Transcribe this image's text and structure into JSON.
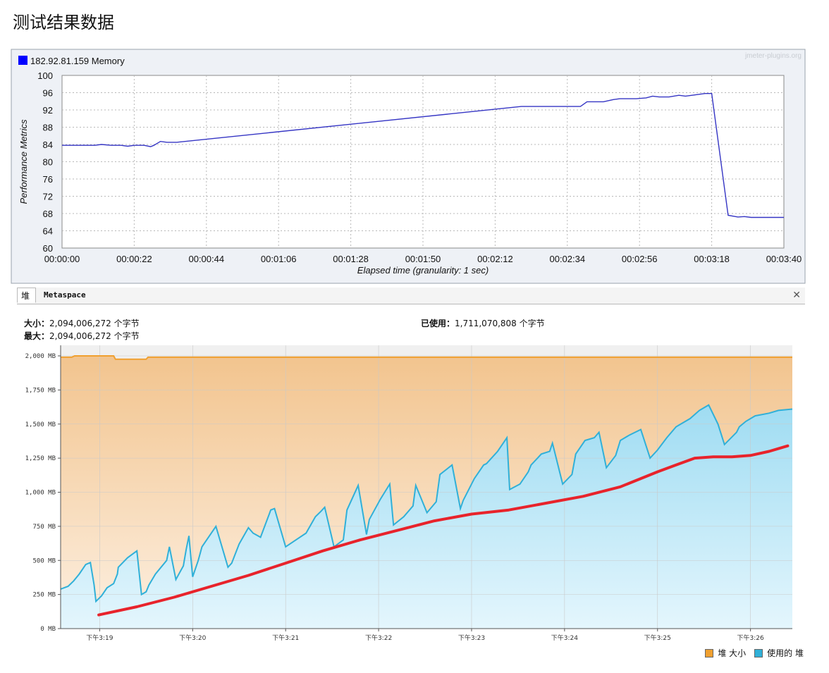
{
  "page": {
    "title": "测试结果数据"
  },
  "chart_data": [
    {
      "type": "line",
      "watermark": "jmeter-plugins.org",
      "ylabel": "Performance Metrics",
      "xlabel": "Elapsed time (granularity: 1 sec)",
      "ylim": [
        60,
        100
      ],
      "yticks": [
        "100",
        "96",
        "92",
        "88",
        "84",
        "80",
        "76",
        "72",
        "68",
        "64",
        "60"
      ],
      "xticks": [
        "00:00:00",
        "00:00:22",
        "00:00:44",
        "00:01:06",
        "00:01:28",
        "00:01:50",
        "00:02:12",
        "00:02:34",
        "00:02:56",
        "00:03:18",
        "00:03:40"
      ],
      "xlim_seconds": [
        0,
        220
      ],
      "grid": true,
      "legend_position": "top-left",
      "series": [
        {
          "name": "182.92.81.159 Memory",
          "color": "#0000ff",
          "line_color": "#3535c4",
          "x": [
            0,
            5,
            10,
            12,
            15,
            18,
            20,
            22,
            25,
            27,
            28,
            30,
            32,
            35,
            140,
            152,
            158,
            160,
            165,
            168,
            170,
            175,
            178,
            180,
            182,
            185,
            188,
            190,
            192,
            196,
            198,
            203,
            206,
            208,
            210,
            215,
            220
          ],
          "y": [
            83.8,
            83.8,
            83.8,
            84.0,
            83.8,
            83.8,
            83.6,
            83.8,
            83.8,
            83.5,
            83.8,
            84.7,
            84.5,
            84.5,
            92.8,
            92.8,
            92.8,
            93.9,
            93.9,
            94.4,
            94.6,
            94.6,
            94.8,
            95.2,
            95.0,
            95.0,
            95.4,
            95.2,
            95.4,
            95.8,
            95.8,
            67.6,
            67.2,
            67.3,
            67.1,
            67.1,
            67.1
          ]
        }
      ]
    },
    {
      "type": "area",
      "tabs": [
        "堆",
        "Metaspace"
      ],
      "close_icon": "close-icon",
      "size_label": "大小：",
      "size_value": "2,094,006,272 个字节",
      "max_label": "最大：",
      "max_value": "2,094,006,272 个字节",
      "used_label": "已使用：",
      "used_value": "1,711,070,808 个字节",
      "yticks": [
        "2,000 MB",
        "1,750 MB",
        "1,500 MB",
        "1,250 MB",
        "1,000 MB",
        "750 MB",
        "500 MB",
        "250 MB",
        "0 MB"
      ],
      "ylim": [
        0,
        2000
      ],
      "xticks": [
        "下午3:19",
        "下午3:20",
        "下午3:21",
        "下午3:22",
        "下午3:23",
        "下午3:24",
        "下午3:25",
        "下午3:26"
      ],
      "xlim_minutes": [
        18.58,
        26.45
      ],
      "grid": true,
      "legend_position": "bottom-right",
      "series": [
        {
          "name": "堆 大小",
          "color": "#f0a030",
          "x": [
            18.58,
            18.7,
            18.73,
            19.15,
            19.17,
            19.5,
            19.52,
            26.45
          ],
          "y": [
            1990,
            1990,
            2000,
            2000,
            1975,
            1975,
            1990,
            1990
          ]
        },
        {
          "name": "使用的 堆",
          "color": "#30b0d8",
          "x": [
            18.58,
            18.66,
            18.72,
            18.78,
            18.85,
            18.9,
            18.94,
            18.96,
            19.02,
            19.08,
            19.15,
            19.19,
            19.2,
            19.3,
            19.4,
            19.45,
            19.5,
            19.53,
            19.6,
            19.72,
            19.75,
            19.82,
            19.9,
            19.93,
            19.96,
            20.0,
            20.06,
            20.1,
            20.25,
            20.38,
            20.42,
            20.5,
            20.6,
            20.65,
            20.73,
            20.84,
            20.88,
            21.0,
            21.22,
            21.32,
            21.38,
            21.42,
            21.52,
            21.62,
            21.66,
            21.78,
            21.87,
            21.9,
            22.02,
            22.12,
            22.16,
            22.27,
            22.37,
            22.4,
            22.52,
            22.62,
            22.66,
            22.79,
            22.88,
            22.91,
            23.03,
            23.13,
            23.16,
            23.28,
            23.38,
            23.41,
            23.52,
            23.61,
            23.64,
            23.75,
            23.84,
            23.87,
            23.98,
            24.08,
            24.12,
            24.22,
            24.32,
            24.37,
            24.45,
            24.55,
            24.6,
            24.7,
            24.82,
            24.92,
            25.0,
            25.1,
            25.2,
            25.25,
            25.35,
            25.45,
            25.55,
            25.65,
            25.72,
            25.85,
            25.88,
            25.95,
            26.05,
            26.2,
            26.3,
            26.45
          ],
          "y": [
            290,
            310,
            350,
            400,
            470,
            485,
            320,
            200,
            240,
            300,
            330,
            400,
            450,
            520,
            570,
            250,
            270,
            320,
            400,
            500,
            600,
            360,
            460,
            580,
            680,
            380,
            500,
            600,
            750,
            450,
            480,
            620,
            740,
            700,
            670,
            870,
            880,
            600,
            700,
            820,
            860,
            890,
            600,
            650,
            870,
            1050,
            690,
            800,
            950,
            1060,
            760,
            820,
            900,
            1050,
            850,
            930,
            1130,
            1200,
            880,
            940,
            1100,
            1200,
            1210,
            1300,
            1400,
            1020,
            1060,
            1150,
            1200,
            1280,
            1300,
            1360,
            1060,
            1130,
            1280,
            1380,
            1400,
            1440,
            1180,
            1270,
            1380,
            1420,
            1460,
            1250,
            1310,
            1400,
            1480,
            1500,
            1540,
            1600,
            1640,
            1500,
            1350,
            1440,
            1480,
            1520,
            1560,
            1580,
            1600,
            1610
          ]
        },
        {
          "name": "",
          "color": "#e8232b",
          "x": [
            18.99,
            19.4,
            19.8,
            20.2,
            20.6,
            21.0,
            21.4,
            21.8,
            22.2,
            22.6,
            23.0,
            23.4,
            23.8,
            24.2,
            24.6,
            25.0,
            25.2,
            25.4,
            25.6,
            25.8,
            26.0,
            26.2,
            26.4
          ],
          "y": [
            100,
            160,
            230,
            310,
            390,
            480,
            570,
            650,
            720,
            790,
            840,
            870,
            920,
            970,
            1040,
            1150,
            1200,
            1250,
            1260,
            1260,
            1270,
            1300,
            1340
          ]
        }
      ]
    }
  ]
}
